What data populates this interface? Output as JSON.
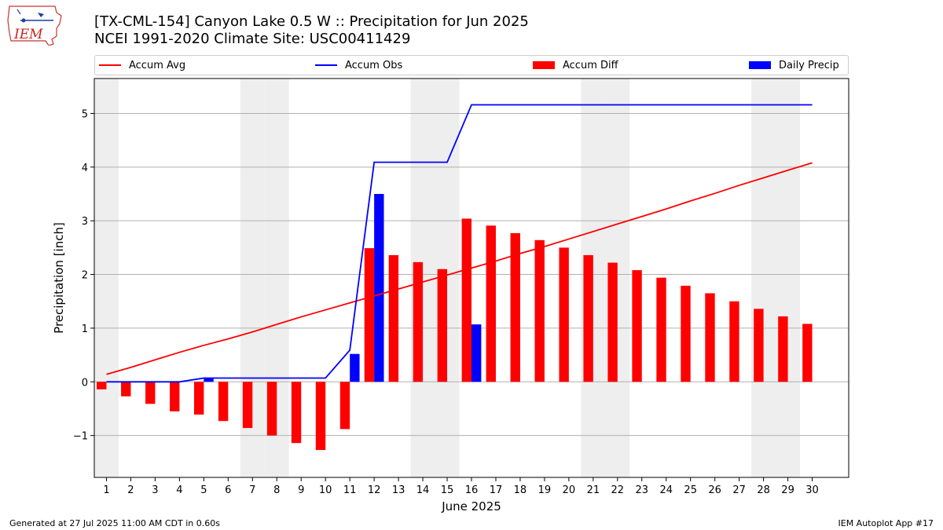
{
  "logo": {
    "text": "IEM",
    "name": "iem-logo"
  },
  "header": {
    "title": "[TX-CML-154] Canyon Lake 0.5 W :: Precipitation for Jun 2025",
    "subtitle": "NCEI 1991-2020 Climate Site: USC00411429"
  },
  "legend": {
    "accum_avg": "Accum Avg",
    "accum_obs": "Accum Obs",
    "accum_diff": "Accum Diff",
    "daily_precip": "Daily Precip"
  },
  "colors": {
    "avg": "#ff0000",
    "obs": "#0000ff",
    "diff": "#ff0000",
    "daily": "#0000ff",
    "weekend_shade": "#eeeeee",
    "grid": "#b0b0b0"
  },
  "chart_data": {
    "type": "bar",
    "xlabel": "June 2025",
    "ylabel": "Precipitation [inch]",
    "xlim": [
      0.5,
      31.5
    ],
    "ylim": [
      -1.78,
      5.65
    ],
    "yticks": [
      -1,
      0,
      1,
      2,
      3,
      4,
      5
    ],
    "ytick_labels": [
      "−1",
      "0",
      "1",
      "2",
      "3",
      "4",
      "5"
    ],
    "categories": [
      1,
      2,
      3,
      4,
      5,
      6,
      7,
      8,
      9,
      10,
      11,
      12,
      13,
      14,
      15,
      16,
      17,
      18,
      19,
      20,
      21,
      22,
      23,
      24,
      25,
      26,
      27,
      28,
      29,
      30
    ],
    "grid": "horizontal",
    "legend_position": "top",
    "shaded_weekends": [
      1,
      7,
      8,
      14,
      15,
      21,
      22,
      28,
      29
    ],
    "series": [
      {
        "name": "Accum Avg",
        "kind": "line",
        "values": [
          0.14,
          0.27,
          0.41,
          0.55,
          0.68,
          0.8,
          0.93,
          1.07,
          1.21,
          1.34,
          1.47,
          1.6,
          1.73,
          1.86,
          1.99,
          2.12,
          2.25,
          2.39,
          2.52,
          2.66,
          2.8,
          2.94,
          3.08,
          3.22,
          3.37,
          3.51,
          3.66,
          3.8,
          3.94,
          4.08
        ]
      },
      {
        "name": "Accum Obs",
        "kind": "line",
        "values": [
          0.0,
          0.0,
          0.0,
          0.0,
          0.07,
          0.07,
          0.07,
          0.07,
          0.07,
          0.07,
          0.59,
          4.09,
          4.09,
          4.09,
          4.09,
          5.16,
          5.16,
          5.16,
          5.16,
          5.16,
          5.16,
          5.16,
          5.16,
          5.16,
          5.16,
          5.16,
          5.16,
          5.16,
          5.16,
          5.16
        ]
      },
      {
        "name": "Accum Diff",
        "kind": "bar",
        "values": [
          -0.14,
          -0.27,
          -0.41,
          -0.55,
          -0.61,
          -0.73,
          -0.86,
          -1.0,
          -1.14,
          -1.27,
          -0.88,
          2.49,
          2.36,
          2.23,
          2.1,
          3.04,
          2.91,
          2.77,
          2.64,
          2.5,
          2.36,
          2.22,
          2.08,
          1.94,
          1.79,
          1.65,
          1.5,
          1.36,
          1.22,
          1.08
        ]
      },
      {
        "name": "Daily Precip",
        "kind": "bar",
        "values": [
          0.0,
          0.0,
          0.0,
          0.0,
          0.07,
          0.0,
          0.0,
          0.0,
          0.0,
          0.0,
          0.52,
          3.5,
          0.0,
          0.0,
          0.0,
          1.07,
          0.0,
          0.0,
          0.0,
          0.0,
          0.0,
          0.0,
          0.0,
          0.0,
          0.0,
          0.0,
          0.0,
          0.0,
          0.0,
          0.0
        ]
      }
    ]
  },
  "footer": {
    "generated": "Generated at 27 Jul 2025 11:00 AM CDT in 0.60s",
    "app": "IEM Autoplot App #17"
  }
}
